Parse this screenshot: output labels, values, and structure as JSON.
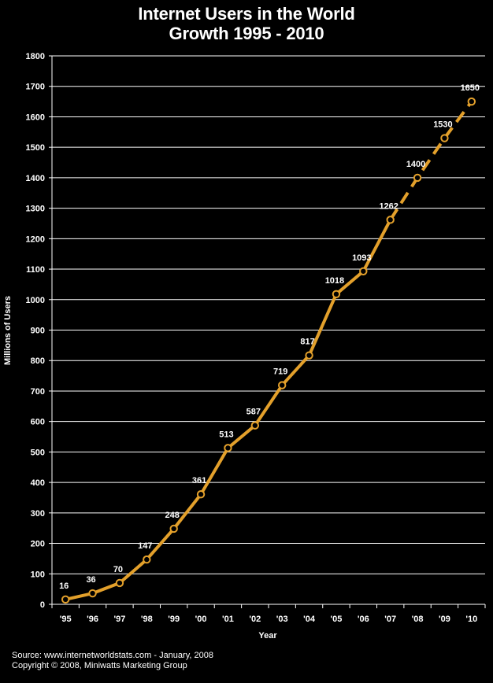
{
  "chart_data": {
    "type": "line",
    "title": [
      "Internet Users in the World",
      "Growth 1995 - 2010"
    ],
    "xlabel": "Year",
    "ylabel": "Millions of Users",
    "categories": [
      "'95",
      "'96",
      "'97",
      "'98",
      "'99",
      "'00",
      "'01",
      "'02",
      "'03",
      "'04",
      "'05",
      "'06",
      "'07",
      "'08",
      "'09",
      "'10"
    ],
    "values": [
      16,
      36,
      70,
      147,
      248,
      361,
      513,
      587,
      719,
      817,
      1018,
      1093,
      1262,
      1400,
      1530,
      1650
    ],
    "data_labels": [
      "16",
      "36",
      "70",
      "147",
      "248",
      "361",
      "513",
      "587",
      "719",
      "817",
      "1018",
      "1093",
      "1262",
      "1400",
      "1530",
      "1650"
    ],
    "projected_from_index": 12,
    "ylim": [
      0,
      1800
    ],
    "yticks": [
      0,
      100,
      200,
      300,
      400,
      500,
      600,
      700,
      800,
      900,
      1000,
      1100,
      1200,
      1300,
      1400,
      1500,
      1600,
      1700,
      1800
    ],
    "grid": true,
    "legend": "none",
    "colors": {
      "background": "#000000",
      "line": "#e3a02b",
      "marker_fill": "#000000",
      "grid": "#ffffff",
      "text": "#ffffff"
    }
  },
  "footer": {
    "source": "Source: www.internetworldstats.com - January, 2008",
    "copyright": "Copyright © 2008, Miniwatts Marketing Group"
  }
}
